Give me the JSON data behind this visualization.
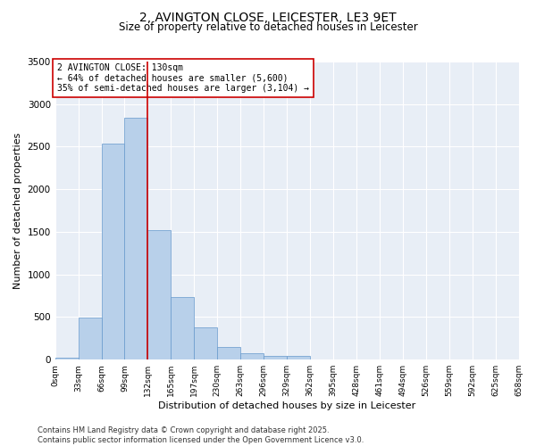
{
  "title_line1": "2, AVINGTON CLOSE, LEICESTER, LE3 9ET",
  "title_line2": "Size of property relative to detached houses in Leicester",
  "xlabel": "Distribution of detached houses by size in Leicester",
  "ylabel": "Number of detached properties",
  "bar_values": [
    20,
    490,
    2540,
    2840,
    1520,
    740,
    380,
    145,
    75,
    40,
    40,
    0,
    0,
    0,
    0,
    0,
    0,
    0,
    0,
    0
  ],
  "bin_labels": [
    "0sqm",
    "33sqm",
    "66sqm",
    "99sqm",
    "132sqm",
    "165sqm",
    "197sqm",
    "230sqm",
    "263sqm",
    "296sqm",
    "329sqm",
    "362sqm",
    "395sqm",
    "428sqm",
    "461sqm",
    "494sqm",
    "526sqm",
    "559sqm",
    "592sqm",
    "625sqm",
    "658sqm"
  ],
  "bar_color": "#b8d0ea",
  "bar_edge_color": "#6699cc",
  "bg_color": "#e8eef6",
  "vline_x": 4,
  "vline_color": "#cc0000",
  "annotation_title": "2 AVINGTON CLOSE: 130sqm",
  "annotation_line1": "← 64% of detached houses are smaller (5,600)",
  "annotation_line2": "35% of semi-detached houses are larger (3,104) →",
  "annotation_box_color": "#cc0000",
  "ylim": [
    0,
    3500
  ],
  "yticks": [
    0,
    500,
    1000,
    1500,
    2000,
    2500,
    3000,
    3500
  ],
  "footer_line1": "Contains HM Land Registry data © Crown copyright and database right 2025.",
  "footer_line2": "Contains public sector information licensed under the Open Government Licence v3.0."
}
